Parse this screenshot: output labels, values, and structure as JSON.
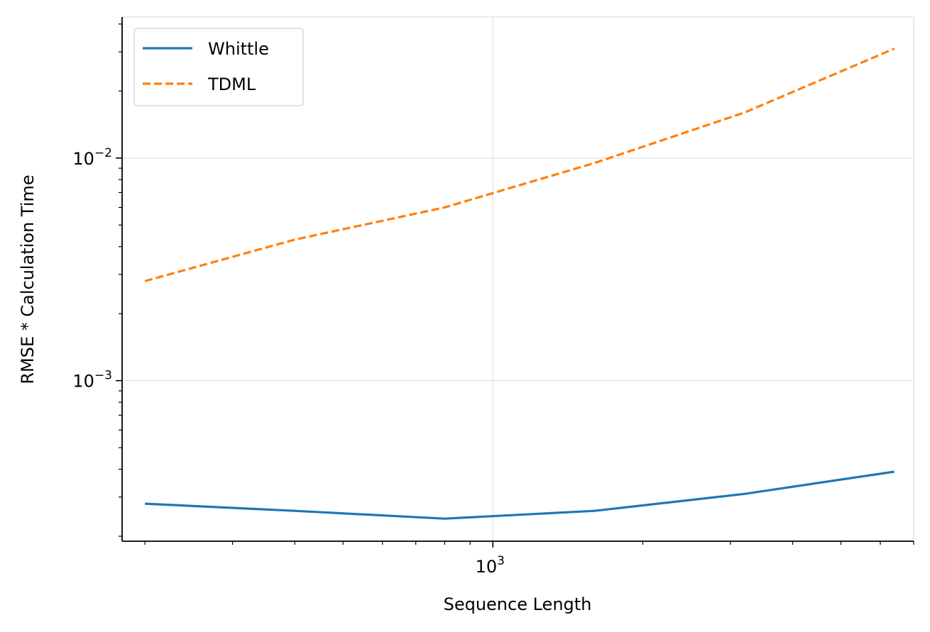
{
  "chart_data": {
    "type": "line",
    "xlabel": "Sequence Length",
    "ylabel": "RMSE * Calculation Time",
    "xscale": "log",
    "yscale": "log",
    "xlim": [
      180,
      7000
    ],
    "ylim": [
      0.00019,
      0.043
    ],
    "x_major_ticks": [
      {
        "value": 1000,
        "base": "10",
        "exp": "3"
      }
    ],
    "y_major_ticks": [
      {
        "value": 0.001,
        "base": "10",
        "exp": "−3"
      },
      {
        "value": 0.01,
        "base": "10",
        "exp": "−2"
      }
    ],
    "grid": true,
    "legend_position": "upper-left",
    "series": [
      {
        "name": "Whittle",
        "color": "#1f77b4",
        "linestyle": "solid",
        "x": [
          200,
          400,
          800,
          1600,
          3200,
          6400
        ],
        "y": [
          0.00028,
          0.00026,
          0.00024,
          0.00026,
          0.00031,
          0.00039
        ]
      },
      {
        "name": "TDML",
        "color": "#ff7f0e",
        "linestyle": "dashed",
        "x": [
          200,
          400,
          800,
          1600,
          3200,
          6400
        ],
        "y": [
          0.0028,
          0.0043,
          0.006,
          0.0095,
          0.016,
          0.031
        ]
      }
    ]
  }
}
